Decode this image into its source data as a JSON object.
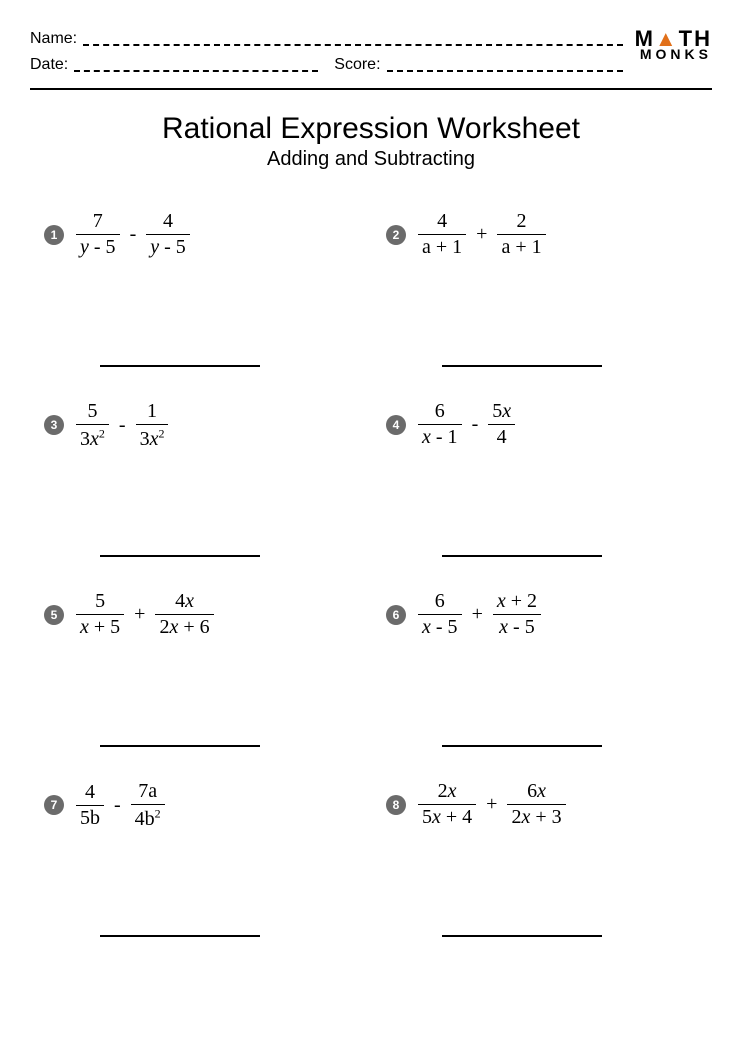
{
  "header": {
    "name_label": "Name:",
    "date_label": "Date:",
    "score_label": "Score:",
    "logo_top_left": "M",
    "logo_top_right": "TH",
    "logo_bottom": "MONKS"
  },
  "title": "Rational Expression Worksheet",
  "subtitle": "Adding and Subtracting",
  "badge_color": "#6b6b6b",
  "accent_color": "#e1701a",
  "problems": [
    {
      "n": "1",
      "f1n": "7",
      "f1d_pre": "",
      "f1d_it": "y",
      "f1d_post": " - 5",
      "op": "-",
      "f2n": "4",
      "f2d_pre": "",
      "f2d_it": "y",
      "f2d_post": " - 5"
    },
    {
      "n": "2",
      "f1n": "4",
      "f1d_pre": "a + 1",
      "f1d_it": "",
      "f1d_post": "",
      "op": "+",
      "f2n": "2",
      "f2d_pre": "a + 1",
      "f2d_it": "",
      "f2d_post": ""
    },
    {
      "n": "3",
      "f1n": "5",
      "f1d_pre": "3",
      "f1d_it": "x",
      "f1d_post": "",
      "f1d_sup": "2",
      "op": "-",
      "f2n": "1",
      "f2d_pre": "3",
      "f2d_it": "x",
      "f2d_post": "",
      "f2d_sup": "2"
    },
    {
      "n": "4",
      "f1n": "6",
      "f1d_pre": "",
      "f1d_it": "x",
      "f1d_post": " - 1",
      "op": "-",
      "f2n_pre": "5",
      "f2n_it": "x",
      "f2d_pre": "4",
      "f2d_it": "",
      "f2d_post": ""
    },
    {
      "n": "5",
      "f1n": "5",
      "f1d_pre": "",
      "f1d_it": "x",
      "f1d_post": " + 5",
      "op": "+",
      "f2n_pre": "4",
      "f2n_it": "x",
      "f2d_pre": "2",
      "f2d_it": "x",
      "f2d_post": " + 6"
    },
    {
      "n": "6",
      "f1n": "6",
      "f1d_pre": "",
      "f1d_it": "x",
      "f1d_post": " - 5",
      "op": "+",
      "f2n_pre": "",
      "f2n_it": "x",
      "f2n_post": " + 2",
      "f2d_pre": "",
      "f2d_it": "x",
      "f2d_post": " - 5"
    },
    {
      "n": "7",
      "f1n": "4",
      "f1d_pre": "5b",
      "f1d_it": "",
      "f1d_post": "",
      "op": "-",
      "f2n_pre": "7a",
      "f2n_it": "",
      "f2d_pre": "4b",
      "f2d_it": "",
      "f2d_post": "",
      "f2d_sup": "2"
    },
    {
      "n": "8",
      "f1n_pre": "2",
      "f1n_it": "x",
      "f1d_pre": "5",
      "f1d_it": "x",
      "f1d_post": " + 4",
      "op": "+",
      "f2n_pre": "6",
      "f2n_it": "x",
      "f2d_pre": "2",
      "f2d_it": "x",
      "f2d_post": " + 3"
    }
  ]
}
